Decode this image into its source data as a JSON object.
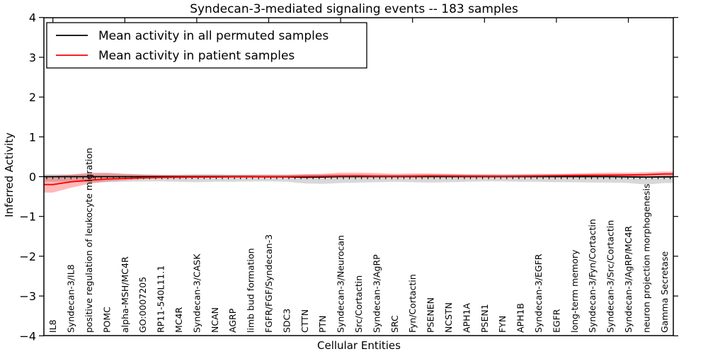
{
  "chart_data": {
    "type": "line",
    "title": "Syndecan-3-mediated signaling events -- 183 samples",
    "xlabel": "Cellular Entities",
    "ylabel": "Inferred Activity",
    "ylim": [
      -4,
      4
    ],
    "yticks": [
      -4,
      -3,
      -2,
      -1,
      0,
      1,
      2,
      3,
      4
    ],
    "grid": false,
    "legend_position": "upper left",
    "categories": [
      "IL8",
      "Syndecan-3/IL8",
      "positive regulation of leukocyte migration",
      "POMC",
      "alpha-MSH/MC4R",
      "GO:0007205",
      "RP11-540L11.1",
      "MC4R",
      "Syndecan-3/CASK",
      "NCAN",
      "AGRP",
      "limb bud formation",
      "FGFR/FGF/Syndecan-3",
      "SDC3",
      "CTTN",
      "PTN",
      "Syndecan-3/Neurocan",
      "Src/Cortactin",
      "Syndecan-3/AgRP",
      "SRC",
      "Fyn/Cortactin",
      "PSENEN",
      "NCSTN",
      "APH1A",
      "PSEN1",
      "FYN",
      "APH1B",
      "Syndecan-3/EGFR",
      "EGFR",
      "long-term memory",
      "Syndecan-3/Fyn/Cortactin",
      "Syndecan-3/Src/Cortactin",
      "Syndecan-3/AgRP/MC4R",
      "neuron projection morphogenesis",
      "Gamma Secretase"
    ],
    "series": [
      {
        "name": "Mean activity in all permuted samples",
        "color": "#000000",
        "band_color": "#999999",
        "band_opacity": 0.38,
        "values": [
          0,
          0,
          0,
          0,
          0,
          0,
          0,
          0,
          0,
          0,
          0,
          0,
          -0.005,
          -0.005,
          -0.015,
          -0.01,
          0,
          0,
          0,
          0,
          0,
          0,
          0,
          0,
          0,
          0,
          0,
          0,
          0,
          0,
          0,
          0,
          -0.005,
          -0.01,
          -0.005
        ],
        "band_upper": [
          0.06,
          0.06,
          0.07,
          0.08,
          0.07,
          0.06,
          0.05,
          0.05,
          0.06,
          0.06,
          0.05,
          0.05,
          0.05,
          0.05,
          0.06,
          0.06,
          0.06,
          0.06,
          0.05,
          0.05,
          0.05,
          0.06,
          0.06,
          0.05,
          0.05,
          0.05,
          0.05,
          0.05,
          0.06,
          0.06,
          0.06,
          0.05,
          0.05,
          0.06,
          0.06
        ],
        "band_lower": [
          -0.13,
          -0.13,
          -0.15,
          -0.14,
          -0.13,
          -0.12,
          -0.12,
          -0.13,
          -0.14,
          -0.13,
          -0.13,
          -0.12,
          -0.12,
          -0.13,
          -0.17,
          -0.18,
          -0.16,
          -0.15,
          -0.14,
          -0.13,
          -0.14,
          -0.15,
          -0.14,
          -0.13,
          -0.12,
          -0.12,
          -0.13,
          -0.13,
          -0.14,
          -0.14,
          -0.15,
          -0.15,
          -0.16,
          -0.2,
          -0.16
        ]
      },
      {
        "name": "Mean activity in patient samples",
        "color": "#ff0000",
        "band_color": "#ff0000",
        "band_opacity": 0.28,
        "values": [
          -0.2,
          -0.13,
          -0.09,
          -0.06,
          -0.045,
          -0.03,
          -0.02,
          -0.015,
          -0.012,
          -0.01,
          -0.008,
          -0.006,
          -0.004,
          0,
          0.008,
          0.01,
          0.018,
          0.02,
          0.015,
          0.012,
          0.015,
          0.02,
          0.018,
          0.015,
          0.012,
          0.01,
          0.015,
          0.02,
          0.025,
          0.03,
          0.035,
          0.04,
          0.042,
          0.05,
          0.07
        ],
        "band_upper": [
          0.02,
          0.05,
          0.1,
          0.1,
          0.07,
          0.05,
          0.045,
          0.04,
          0.04,
          0.04,
          0.045,
          0.05,
          0.05,
          0.05,
          0.06,
          0.07,
          0.1,
          0.1,
          0.09,
          0.07,
          0.08,
          0.08,
          0.07,
          0.06,
          0.06,
          0.06,
          0.06,
          0.07,
          0.07,
          0.08,
          0.09,
          0.1,
          0.1,
          0.11,
          0.13
        ],
        "band_lower": [
          -0.4,
          -0.28,
          -0.18,
          -0.12,
          -0.09,
          -0.06,
          -0.04,
          -0.03,
          -0.025,
          -0.02,
          -0.018,
          -0.015,
          -0.012,
          -0.01,
          -0.01,
          -0.01,
          -0.01,
          -0.01,
          -0.01,
          -0.01,
          -0.01,
          -0.01,
          -0.01,
          -0.01,
          -0.01,
          -0.01,
          -0.01,
          -0.01,
          -0.005,
          0,
          0,
          0.005,
          0.005,
          0.01,
          0.02
        ]
      }
    ],
    "legend": {
      "entries": [
        {
          "label": "Mean activity in all permuted samples",
          "color": "#000000"
        },
        {
          "label": "Mean activity in patient samples",
          "color": "#ff0000"
        }
      ]
    }
  }
}
